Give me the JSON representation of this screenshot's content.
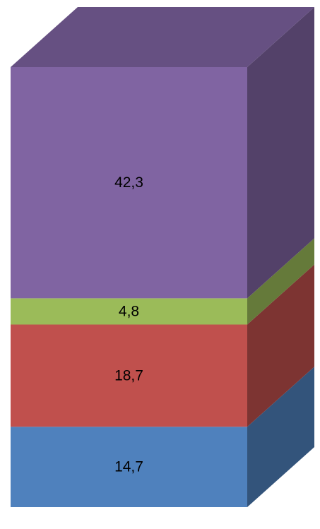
{
  "chart_data": {
    "type": "bar3d_stacked",
    "categories": [
      null
    ],
    "series": [
      {
        "color": "#4f81bd",
        "values": [
          14.7
        ],
        "value_labels": [
          "14,7"
        ]
      },
      {
        "color": "#c0504d",
        "values": [
          18.7
        ],
        "value_labels": [
          "18,7"
        ]
      },
      {
        "color": "#9bbb59",
        "values": [
          4.8
        ],
        "value_labels": [
          "4,8"
        ]
      },
      {
        "color": "#8064a2",
        "values": [
          42.3
        ],
        "value_labels": [
          "42,3"
        ]
      }
    ]
  }
}
